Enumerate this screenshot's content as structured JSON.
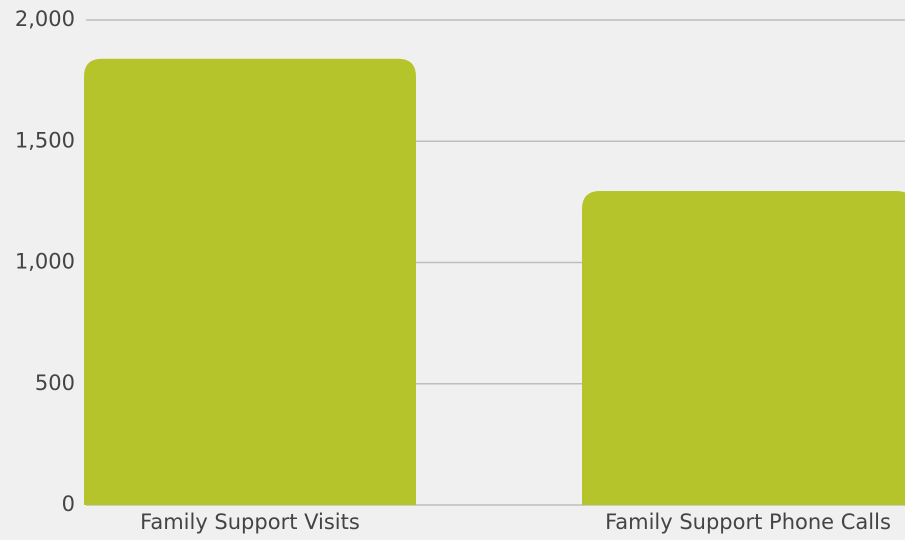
{
  "chart_data": {
    "type": "bar",
    "categories": [
      "Family Support Visits",
      "Family Support Phone Calls"
    ],
    "values": [
      1840,
      1295
    ],
    "color": "#b5c42a",
    "ylim": [
      0,
      2000
    ],
    "yticks": [
      0,
      500,
      {
        "value": 1000,
        "label": "1,000"
      },
      {
        "value": 1500,
        "label": "1,500"
      },
      {
        "value": 2000,
        "label": "2,000"
      }
    ],
    "grid": true
  }
}
